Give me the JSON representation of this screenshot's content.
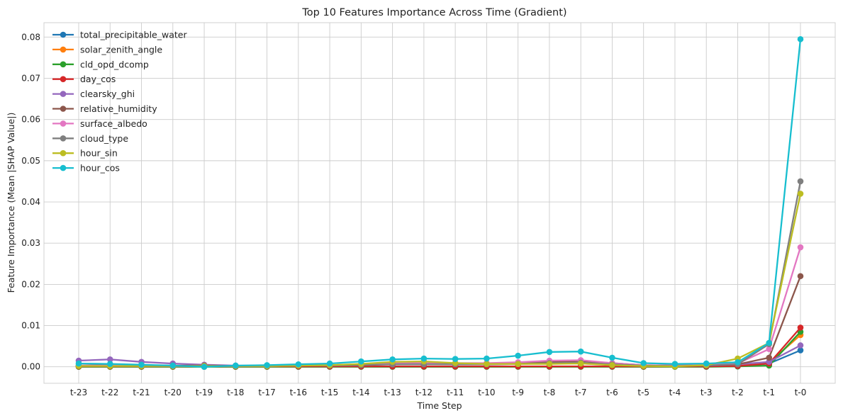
{
  "chart_data": {
    "type": "line",
    "title": "Top 10 Features Importance Across Time (Gradient)",
    "xlabel": "Time Step",
    "ylabel": "Feature Importance (Mean |SHAP Value|)",
    "categories": [
      "t-23",
      "t-22",
      "t-21",
      "t-20",
      "t-19",
      "t-18",
      "t-17",
      "t-16",
      "t-15",
      "t-14",
      "t-13",
      "t-12",
      "t-11",
      "t-10",
      "t-9",
      "t-8",
      "t-7",
      "t-6",
      "t-5",
      "t-4",
      "t-3",
      "t-2",
      "t-1",
      "t-0"
    ],
    "ylim": [
      -0.004,
      0.0835
    ],
    "yticks": [
      0.0,
      0.01,
      0.02,
      0.03,
      0.04,
      0.05,
      0.06,
      0.07,
      0.08
    ],
    "ytick_labels": [
      "0.00",
      "0.01",
      "0.02",
      "0.03",
      "0.04",
      "0.05",
      "0.06",
      "0.07",
      "0.08"
    ],
    "grid": true,
    "legend_position": "top-left",
    "series": [
      {
        "name": "total_precipitable_water",
        "color": "#1f77b4",
        "values": [
          0.0001,
          0.0001,
          0.0001,
          0.0001,
          0.0001,
          0.0001,
          0.0001,
          0.0001,
          0.0001,
          0.0001,
          0.0001,
          0.0001,
          0.0001,
          0.0001,
          0.0001,
          0.0001,
          0.0001,
          0.0001,
          0.0001,
          0.0001,
          0.0001,
          0.0001,
          0.0008,
          0.004
        ]
      },
      {
        "name": "solar_zenith_angle",
        "color": "#ff7f0e",
        "values": [
          0.0001,
          0.0001,
          0.0001,
          0.0001,
          0.0001,
          0.0001,
          0.0001,
          0.0001,
          0.0001,
          0.0001,
          0.0001,
          0.0001,
          0.0001,
          0.0001,
          0.0001,
          0.0001,
          0.0001,
          0.0001,
          0.0001,
          0.0001,
          0.0001,
          0.0002,
          0.001,
          0.0077
        ]
      },
      {
        "name": "cld_opd_dcomp",
        "color": "#2ca02c",
        "values": [
          0.0,
          0.0,
          0.0,
          0.0,
          0.0,
          0.0,
          0.0,
          0.0,
          0.0,
          0.0,
          0.0,
          0.0,
          0.0,
          0.0,
          0.0,
          0.0,
          0.0,
          0.0,
          0.0,
          0.0,
          0.0,
          0.0001,
          0.0003,
          0.0085
        ]
      },
      {
        "name": "day_cos",
        "color": "#d62728",
        "values": [
          0.0001,
          0.0001,
          0.0001,
          0.0001,
          0.0001,
          0.0001,
          0.0001,
          0.0001,
          0.0001,
          0.0001,
          0.0001,
          0.0001,
          0.0001,
          0.0001,
          0.0001,
          0.0001,
          0.0001,
          0.0001,
          0.0001,
          0.0001,
          0.0001,
          0.0002,
          0.0008,
          0.0095
        ]
      },
      {
        "name": "clearsky_ghi",
        "color": "#9467bd",
        "values": [
          0.0015,
          0.0018,
          0.0012,
          0.0008,
          0.0005,
          0.0003,
          0.0003,
          0.0003,
          0.0004,
          0.0005,
          0.0006,
          0.0007,
          0.0006,
          0.0006,
          0.0007,
          0.0008,
          0.0008,
          0.0005,
          0.0003,
          0.0003,
          0.0004,
          0.0006,
          0.0012,
          0.0052
        ]
      },
      {
        "name": "relative_humidity",
        "color": "#8c564b",
        "values": [
          0.0003,
          0.0004,
          0.0004,
          0.0003,
          0.0003,
          0.0002,
          0.0002,
          0.0003,
          0.0004,
          0.0006,
          0.0008,
          0.0009,
          0.0008,
          0.0008,
          0.0009,
          0.0012,
          0.0014,
          0.0009,
          0.0004,
          0.0003,
          0.0004,
          0.0006,
          0.0022,
          0.022
        ]
      },
      {
        "name": "surface_albedo",
        "color": "#e377c2",
        "values": [
          0.0003,
          0.0003,
          0.0003,
          0.0002,
          0.0002,
          0.0002,
          0.0002,
          0.0003,
          0.0004,
          0.0006,
          0.0008,
          0.0009,
          0.0009,
          0.0009,
          0.0011,
          0.0015,
          0.0016,
          0.0009,
          0.0004,
          0.0003,
          0.0004,
          0.0008,
          0.0043,
          0.029
        ]
      },
      {
        "name": "cloud_type",
        "color": "#7f7f7f",
        "values": [
          0.0002,
          0.0002,
          0.0002,
          0.0002,
          0.0002,
          0.0002,
          0.0002,
          0.0003,
          0.0003,
          0.0004,
          0.0006,
          0.0006,
          0.0006,
          0.0006,
          0.0007,
          0.0009,
          0.001,
          0.0006,
          0.0003,
          0.0002,
          0.0003,
          0.0006,
          0.0055,
          0.045
        ]
      },
      {
        "name": "hour_sin",
        "color": "#bcbd22",
        "values": [
          0.0002,
          0.0002,
          0.0002,
          0.0002,
          0.0002,
          0.0002,
          0.0002,
          0.0003,
          0.0004,
          0.0007,
          0.0012,
          0.0013,
          0.0009,
          0.0007,
          0.0007,
          0.0007,
          0.0008,
          0.0004,
          0.0002,
          0.0001,
          0.0004,
          0.002,
          0.0058,
          0.042
        ]
      },
      {
        "name": "hour_cos",
        "color": "#17becf",
        "values": [
          0.0008,
          0.0007,
          0.0005,
          0.0003,
          0.0,
          0.0003,
          0.0004,
          0.0006,
          0.0008,
          0.0013,
          0.0018,
          0.002,
          0.0019,
          0.002,
          0.0027,
          0.0036,
          0.0037,
          0.0022,
          0.0009,
          0.0007,
          0.0008,
          0.0011,
          0.0058,
          0.0795
        ]
      }
    ]
  }
}
